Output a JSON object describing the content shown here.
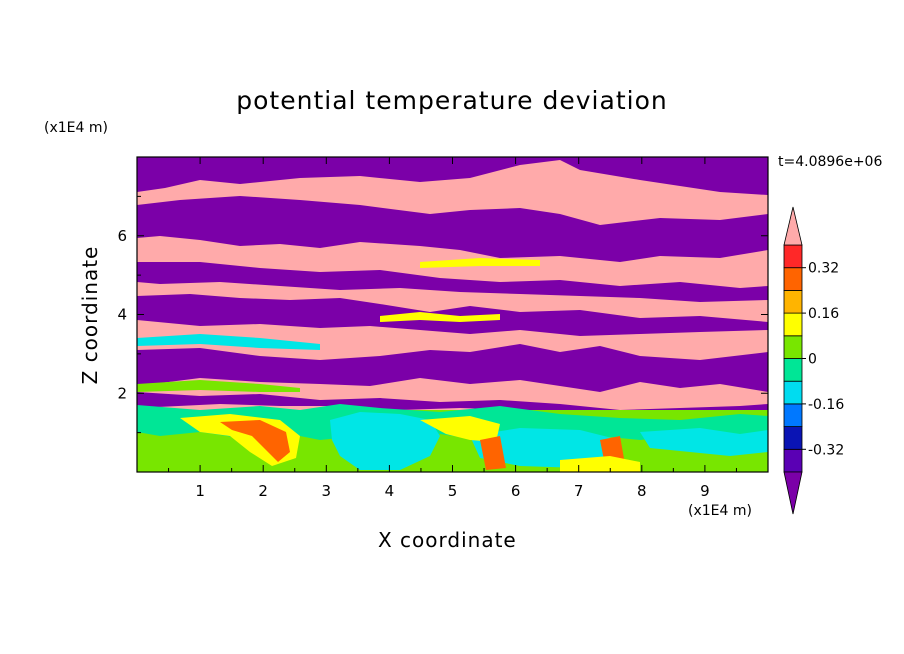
{
  "chart_data": {
    "type": "heatmap",
    "title": "potential temperature deviation",
    "xlabel": "X coordinate",
    "ylabel": "Z coordinate",
    "x_unit": "(x1E4 m)",
    "y_unit": "(x1E4 m)",
    "time_label": "t=4.0896e+06",
    "xlim": [
      0,
      10
    ],
    "ylim": [
      0,
      8
    ],
    "x_ticks": [
      "1",
      "2",
      "3",
      "4",
      "5",
      "6",
      "7",
      "8",
      "9"
    ],
    "y_ticks": [
      "2",
      "4",
      "6"
    ],
    "colorbar": {
      "labels": [
        "0.32",
        "0.16",
        "0",
        "-0.16",
        "-0.32"
      ],
      "label_values": [
        0.32,
        0.16,
        0,
        -0.16,
        -0.32
      ],
      "levels": [
        -0.4,
        -0.32,
        -0.24,
        -0.16,
        -0.08,
        0,
        0.08,
        0.16,
        0.24,
        0.32,
        0.4
      ],
      "colors": [
        "#7b00a8",
        "#5a00b4",
        "#0a14b4",
        "#0078ff",
        "#00dcf0",
        "#00e696",
        "#78e600",
        "#ffff00",
        "#ffb400",
        "#ff6400",
        "#ff2828",
        "#ffaaaa"
      ],
      "extend": "both"
    },
    "colors": {
      "low": "#7b00a8",
      "high": "#ffaaaa",
      "mid_green": "#78e600",
      "cyan": "#00e6e6",
      "yellow": "#ffff00",
      "orange": "#ff6400"
    }
  }
}
